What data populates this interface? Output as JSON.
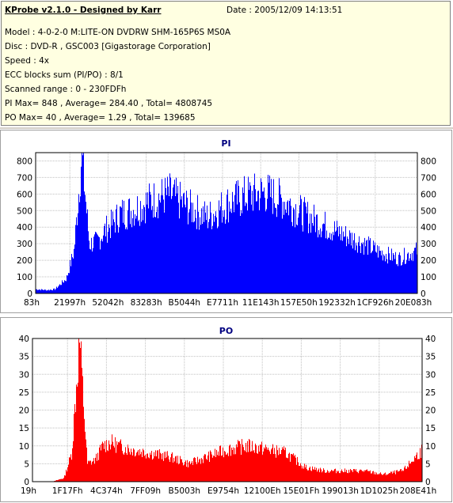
{
  "info": {
    "title": "KProbe v2.1.0 - Designed by Karr",
    "date": "Date : 2005/12/09 14:13:51",
    "lines": [
      "Model : 4-0-2-0 M:LITE-ON DVDRW SHM-165P6S MS0A",
      "Disc : DVD-R , GSC003 [Gigastorage Corporation]",
      "Speed : 4x",
      "ECC blocks sum (PI/PO) : 8/1",
      "Scanned range : 0 - 230FDFh",
      "PI Max= 848 , Average= 284.40 , Total= 4808745",
      "PO Max= 40 , Average= 1.29 , Total= 139685"
    ]
  },
  "colors": {
    "pi": "#0000ff",
    "po": "#ff0000",
    "grid": "#c0c0c0",
    "title": "#000080"
  },
  "chart_data": [
    {
      "type": "area",
      "title": "PI",
      "ylim": [
        0,
        850
      ],
      "yticks": [
        0,
        100,
        200,
        300,
        400,
        500,
        600,
        700,
        800
      ],
      "xtick_labels": [
        "83h",
        "21997h",
        "52042h",
        "83283h",
        "B5044h",
        "E7711h",
        "11E143h",
        "157E50h",
        "192332h",
        "1CF926h",
        "20E083h"
      ],
      "x": [
        0,
        3,
        5,
        8,
        10,
        12,
        14,
        16,
        18,
        20,
        22,
        25,
        30,
        35,
        40,
        45,
        50,
        55,
        60,
        65,
        70,
        75,
        80,
        85,
        90,
        95,
        100
      ],
      "values": [
        25,
        20,
        25,
        90,
        260,
        848,
        300,
        310,
        380,
        420,
        480,
        500,
        560,
        600,
        520,
        460,
        540,
        590,
        610,
        560,
        480,
        420,
        360,
        310,
        250,
        210,
        260
      ],
      "grid": true
    },
    {
      "type": "area",
      "title": "PO",
      "ylim": [
        0,
        40
      ],
      "yticks": [
        0,
        5,
        10,
        15,
        20,
        25,
        30,
        35,
        40
      ],
      "xtick_labels": [
        "19h",
        "1F17Fh",
        "4C374h",
        "7FF09h",
        "B5003h",
        "E9754h",
        "12100Eh",
        "15E01Fh",
        "199013h",
        "1D1025h",
        "208E41h"
      ],
      "x": [
        0,
        3,
        5,
        8,
        10,
        12,
        14,
        16,
        18,
        20,
        22,
        25,
        30,
        35,
        40,
        45,
        50,
        55,
        60,
        65,
        70,
        75,
        80,
        85,
        90,
        95,
        100
      ],
      "values": [
        0,
        0,
        0,
        1,
        8,
        40,
        5,
        6,
        10,
        11,
        10,
        9,
        8,
        7,
        5,
        7,
        9,
        10,
        9,
        8,
        4,
        3,
        3,
        3,
        2,
        3,
        9
      ],
      "grid": true
    }
  ]
}
